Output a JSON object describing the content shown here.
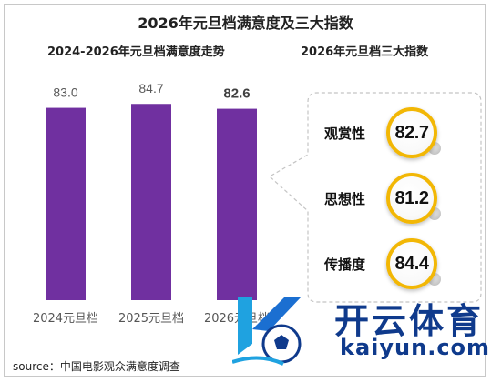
{
  "title": "2026年元旦档满意度及三大指数",
  "left_panel": {
    "title": "2024-2026年元旦档满意度走势"
  },
  "right_panel": {
    "title": "2026年元旦档三大指数",
    "items": [
      {
        "label": "观赏性",
        "value": "82.7"
      },
      {
        "label": "思想性",
        "value": "81.2"
      },
      {
        "label": "传播度",
        "value": "84.4"
      }
    ]
  },
  "chart_data": {
    "type": "bar",
    "categories": [
      "2024元旦档",
      "2025元旦档",
      "2026元旦档"
    ],
    "values": [
      83.0,
      84.7,
      82.6
    ],
    "value_labels": [
      "83.0",
      "84.7",
      "82.6"
    ],
    "title": "2024-2026年元旦档满意度走势",
    "xlabel": "",
    "ylabel": "",
    "grid": false,
    "colors": {
      "bar": "#7030a0",
      "label": "#595959",
      "highlight_label": "#404040"
    }
  },
  "source": "source：中国电影观众满意度调查",
  "watermark": {
    "text_cn": "开云体育",
    "text_en": "kaiyun.com"
  }
}
